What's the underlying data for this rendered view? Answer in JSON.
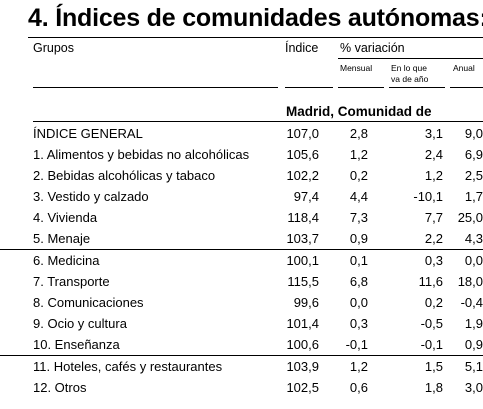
{
  "title": "4. Índices de comunidades autónomas:",
  "header": {
    "groups": "Grupos",
    "index": "Índice",
    "variation": "% variación",
    "monthly": "Mensual",
    "ytd_line1": "En lo que",
    "ytd_line2": "va de año",
    "annual": "Anual"
  },
  "region": "Madrid, Comunidad de",
  "rows": [
    {
      "label": "ÍNDICE GENERAL",
      "index": "107,0",
      "monthly": "2,8",
      "ytd": "3,1",
      "annual": "9,0"
    },
    {
      "label": "1. Alimentos y bebidas no alcohólicas",
      "index": "105,6",
      "monthly": "1,2",
      "ytd": "2,4",
      "annual": "6,9"
    },
    {
      "label": "2. Bebidas alcohólicas y tabaco",
      "index": "102,2",
      "monthly": "0,2",
      "ytd": "1,2",
      "annual": "2,5"
    },
    {
      "label": "3. Vestido y calzado",
      "index": "97,4",
      "monthly": "4,4",
      "ytd": "-10,1",
      "annual": "1,7"
    },
    {
      "label": "4. Vivienda",
      "index": "118,4",
      "monthly": "7,3",
      "ytd": "7,7",
      "annual": "25,0"
    },
    {
      "label": "5. Menaje",
      "index": "103,7",
      "monthly": "0,9",
      "ytd": "2,2",
      "annual": "4,3"
    },
    {
      "label": "6. Medicina",
      "index": "100,1",
      "monthly": "0,1",
      "ytd": "0,3",
      "annual": "0,0"
    },
    {
      "label": "7. Transporte",
      "index": "115,5",
      "monthly": "6,8",
      "ytd": "11,6",
      "annual": "18,0"
    },
    {
      "label": "8. Comunicaciones",
      "index": "99,6",
      "monthly": "0,0",
      "ytd": "0,2",
      "annual": "-0,4"
    },
    {
      "label": "9. Ocio y cultura",
      "index": "101,4",
      "monthly": "0,3",
      "ytd": "-0,5",
      "annual": "1,9"
    },
    {
      "label": "10. Enseñanza",
      "index": "100,6",
      "monthly": "-0,1",
      "ytd": "-0,1",
      "annual": "0,9"
    },
    {
      "label": "11. Hoteles, cafés y restaurantes",
      "index": "103,9",
      "monthly": "1,2",
      "ytd": "1,5",
      "annual": "5,1"
    },
    {
      "label": "12. Otros",
      "index": "102,5",
      "monthly": "0,6",
      "ytd": "1,8",
      "annual": "3,0"
    }
  ]
}
